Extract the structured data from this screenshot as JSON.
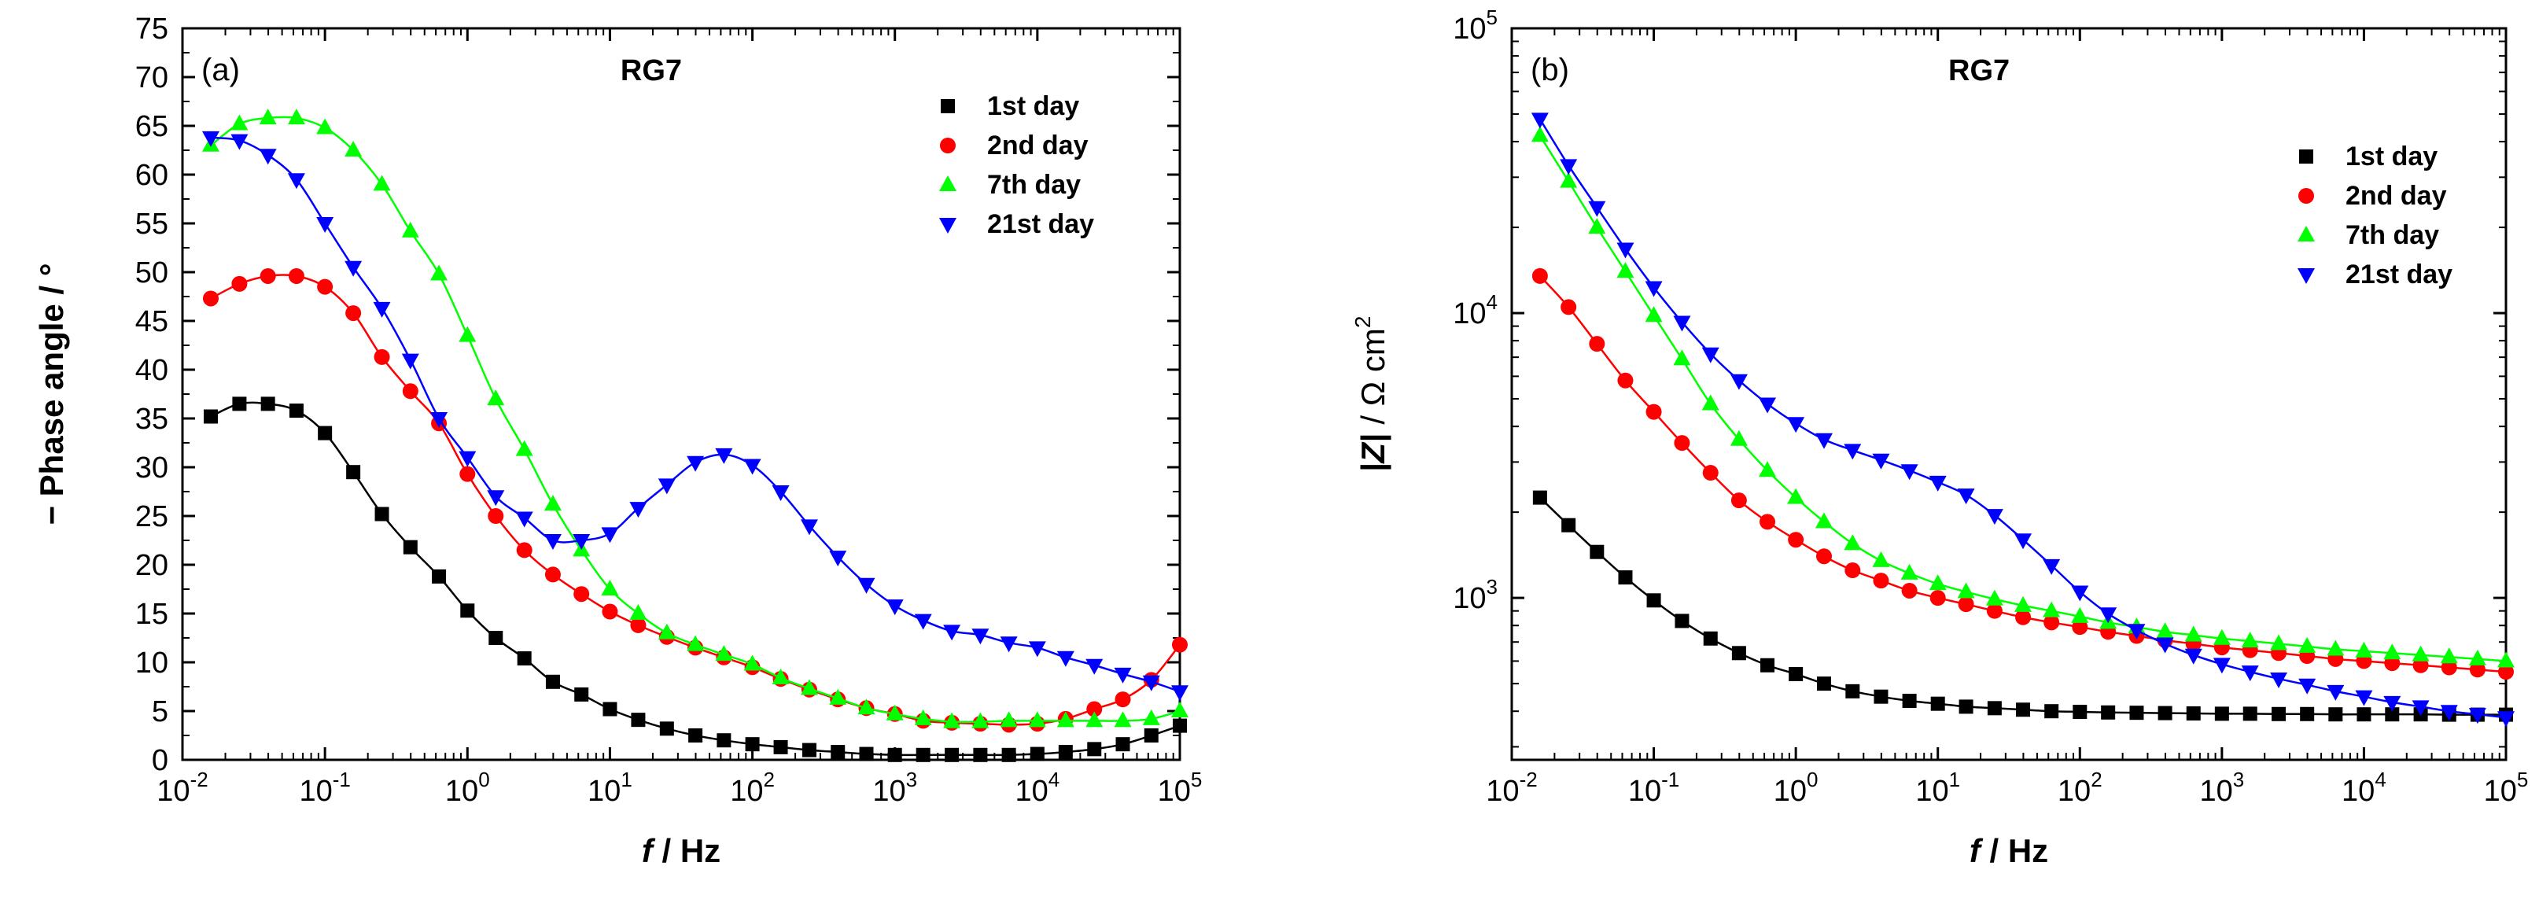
{
  "chart_data": [
    {
      "id": "a",
      "type": "scatter",
      "panel_label": "(a)",
      "title": "RG7",
      "xlabel_italic": "f",
      "xlabel_rest": " / Hz",
      "ylabel": "− Phase angle / °",
      "xscale": "log",
      "xlim": [
        0.01,
        100000
      ],
      "ylim": [
        0,
        75
      ],
      "xticks": [
        0.01,
        0.1,
        1,
        10,
        100,
        1000,
        10000,
        100000
      ],
      "xtick_labels": [
        {
          "base": "10",
          "exp": "-2"
        },
        {
          "base": "10",
          "exp": "-1"
        },
        {
          "base": "10",
          "exp": "0"
        },
        {
          "base": "10",
          "exp": "1"
        },
        {
          "base": "10",
          "exp": "2"
        },
        {
          "base": "10",
          "exp": "3"
        },
        {
          "base": "10",
          "exp": "4"
        },
        {
          "base": "10",
          "exp": "5"
        }
      ],
      "yticks": [
        0,
        5,
        10,
        15,
        20,
        25,
        30,
        35,
        40,
        45,
        50,
        55,
        60,
        65,
        70,
        75
      ],
      "ytick_labels": [
        "0",
        "5",
        "10",
        "15",
        "20",
        "25",
        "30",
        "35",
        "40",
        "45",
        "50",
        "55",
        "60",
        "65",
        "70",
        "75"
      ],
      "legend_position": "top-right",
      "x": [
        0.0158,
        0.0251,
        0.0398,
        0.0631,
        0.1,
        0.158,
        0.251,
        0.398,
        0.631,
        1,
        1.58,
        2.51,
        3.98,
        6.31,
        10,
        15.8,
        25.1,
        39.8,
        63.1,
        100,
        158,
        251,
        398,
        631,
        1000,
        1580,
        2510,
        3980,
        6310,
        10000,
        15800,
        25100,
        39800,
        63100,
        100000
      ],
      "series": [
        {
          "name": "1st day",
          "color": "#000000",
          "marker": "square",
          "values": [
            35.2,
            36.5,
            36.5,
            35.8,
            33.5,
            29.5,
            25.2,
            21.8,
            18.8,
            15.3,
            12.5,
            10.4,
            8.0,
            6.7,
            5.2,
            4.1,
            3.2,
            2.5,
            2.0,
            1.6,
            1.3,
            1.0,
            0.8,
            0.6,
            0.5,
            0.5,
            0.5,
            0.5,
            0.5,
            0.6,
            0.8,
            1.1,
            1.6,
            2.5,
            3.5
          ]
        },
        {
          "name": "2nd day",
          "color": "#ff0000",
          "marker": "circle",
          "values": [
            47.3,
            48.8,
            49.6,
            49.6,
            48.5,
            45.8,
            41.3,
            37.8,
            34.5,
            29.3,
            25.0,
            21.5,
            19.0,
            17.0,
            15.2,
            13.8,
            12.6,
            11.5,
            10.5,
            9.5,
            8.3,
            7.2,
            6.2,
            5.3,
            4.7,
            4.0,
            3.8,
            3.7,
            3.6,
            3.7,
            4.2,
            5.2,
            6.2,
            8.2,
            11.8
          ]
        },
        {
          "name": "7th day",
          "color": "#00ff00",
          "marker": "triangle-up",
          "values": [
            63.0,
            65.2,
            65.8,
            65.8,
            64.8,
            62.5,
            59.0,
            54.2,
            49.8,
            43.5,
            37.0,
            31.8,
            26.2,
            21.5,
            17.5,
            15.0,
            13.0,
            11.8,
            10.8,
            9.8,
            8.4,
            7.3,
            6.3,
            5.3,
            4.7,
            4.2,
            3.9,
            3.9,
            4.0,
            4.0,
            4.0,
            4.0,
            4.0,
            4.2,
            5.0
          ]
        },
        {
          "name": "21st day",
          "color": "#0000ff",
          "marker": "triangle-down",
          "values": [
            63.8,
            63.5,
            62.0,
            59.5,
            55.0,
            50.5,
            46.3,
            41.0,
            35.0,
            31.0,
            27.0,
            24.8,
            22.5,
            22.5,
            23.2,
            25.8,
            28.2,
            30.5,
            31.3,
            30.2,
            27.5,
            24.0,
            20.8,
            18.0,
            15.8,
            14.3,
            13.2,
            12.8,
            12.0,
            11.5,
            10.5,
            9.7,
            8.8,
            8.0,
            7.0
          ]
        }
      ]
    },
    {
      "id": "b",
      "type": "scatter",
      "panel_label": "(b)",
      "title": "RG7",
      "xlabel_italic": "f",
      "xlabel_rest": " / Hz",
      "ylabel_mod": "|Z|",
      "ylabel_rest": " / Ω cm",
      "ylabel_exp": "2",
      "xscale": "log",
      "yscale": "log",
      "xlim": [
        0.01,
        100000
      ],
      "ylim": [
        270,
        100000
      ],
      "xticks": [
        0.01,
        0.1,
        1,
        10,
        100,
        1000,
        10000,
        100000
      ],
      "xtick_labels": [
        {
          "base": "10",
          "exp": "-2"
        },
        {
          "base": "10",
          "exp": "-1"
        },
        {
          "base": "10",
          "exp": "0"
        },
        {
          "base": "10",
          "exp": "1"
        },
        {
          "base": "10",
          "exp": "2"
        },
        {
          "base": "10",
          "exp": "3"
        },
        {
          "base": "10",
          "exp": "4"
        },
        {
          "base": "10",
          "exp": "5"
        }
      ],
      "yticks": [
        1000,
        10000,
        100000
      ],
      "ytick_labels": [
        {
          "base": "10",
          "exp": "3"
        },
        {
          "base": "10",
          "exp": "4"
        },
        {
          "base": "10",
          "exp": "5"
        }
      ],
      "legend_position": "top-right",
      "x": [
        0.0158,
        0.0251,
        0.0398,
        0.0631,
        0.1,
        0.158,
        0.251,
        0.398,
        0.631,
        1,
        1.58,
        2.51,
        3.98,
        6.31,
        10,
        15.8,
        25.1,
        39.8,
        63.1,
        100,
        158,
        251,
        398,
        631,
        1000,
        1580,
        2510,
        3980,
        6310,
        10000,
        15800,
        25100,
        39800,
        63100,
        100000
      ],
      "series": [
        {
          "name": "1st day",
          "color": "#000000",
          "marker": "square",
          "values": [
            2250,
            1800,
            1450,
            1180,
            980,
            830,
            720,
            640,
            580,
            540,
            500,
            470,
            450,
            435,
            425,
            415,
            410,
            405,
            400,
            398,
            396,
            395,
            394,
            393,
            392,
            392,
            391,
            391,
            390,
            390,
            390,
            390,
            389,
            389,
            389
          ]
        },
        {
          "name": "2nd day",
          "color": "#ff0000",
          "marker": "circle",
          "values": [
            13500,
            10500,
            7800,
            5800,
            4500,
            3500,
            2750,
            2200,
            1850,
            1600,
            1400,
            1250,
            1150,
            1060,
            1000,
            950,
            900,
            855,
            820,
            790,
            760,
            735,
            710,
            690,
            670,
            655,
            640,
            625,
            610,
            600,
            590,
            580,
            570,
            560,
            550
          ]
        },
        {
          "name": "7th day",
          "color": "#00ff00",
          "marker": "triangle-up",
          "values": [
            42000,
            29000,
            20000,
            14000,
            9800,
            6900,
            4800,
            3600,
            2800,
            2250,
            1850,
            1550,
            1350,
            1220,
            1120,
            1050,
            990,
            940,
            900,
            860,
            820,
            790,
            760,
            740,
            720,
            705,
            690,
            675,
            660,
            650,
            640,
            630,
            620,
            610,
            600
          ]
        },
        {
          "name": "21st day",
          "color": "#0000ff",
          "marker": "triangle-down",
          "values": [
            48000,
            33000,
            23500,
            16800,
            12300,
            9300,
            7200,
            5800,
            4800,
            4100,
            3600,
            3300,
            3050,
            2800,
            2550,
            2300,
            1950,
            1600,
            1300,
            1050,
            880,
            770,
            690,
            630,
            585,
            550,
            520,
            495,
            470,
            450,
            430,
            415,
            400,
            390,
            380
          ]
        }
      ]
    }
  ]
}
